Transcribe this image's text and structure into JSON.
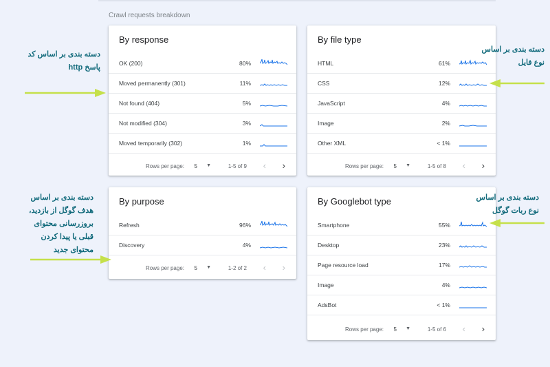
{
  "section_title": "Crawl requests breakdown",
  "cards": {
    "response": {
      "title": "By response",
      "rows": [
        {
          "label": "OK (200)",
          "pct": "80%"
        },
        {
          "label": "Moved permanently (301)",
          "pct": "11%"
        },
        {
          "label": "Not found (404)",
          "pct": "5%"
        },
        {
          "label": "Not modified (304)",
          "pct": "3%"
        },
        {
          "label": "Moved temporarily (302)",
          "pct": "1%"
        }
      ],
      "pager": {
        "rows_per_page": "Rows per page:",
        "size": "5",
        "range": "1-5 of 9"
      }
    },
    "filetype": {
      "title": "By file type",
      "rows": [
        {
          "label": "HTML",
          "pct": "61%"
        },
        {
          "label": "CSS",
          "pct": "12%"
        },
        {
          "label": "JavaScript",
          "pct": "4%"
        },
        {
          "label": "Image",
          "pct": "2%"
        },
        {
          "label": "Other XML",
          "pct": "< 1%"
        }
      ],
      "pager": {
        "rows_per_page": "Rows per page:",
        "size": "5",
        "range": "1-5 of 8"
      }
    },
    "purpose": {
      "title": "By purpose",
      "rows": [
        {
          "label": "Refresh",
          "pct": "96%"
        },
        {
          "label": "Discovery",
          "pct": "4%"
        }
      ],
      "pager": {
        "rows_per_page": "Rows per page:",
        "size": "5",
        "range": "1-2 of 2"
      }
    },
    "googlebot": {
      "title": "By Googlebot type",
      "rows": [
        {
          "label": "Smartphone",
          "pct": "55%"
        },
        {
          "label": "Desktop",
          "pct": "23%"
        },
        {
          "label": "Page resource load",
          "pct": "17%"
        },
        {
          "label": "Image",
          "pct": "4%"
        },
        {
          "label": "AdsBot",
          "pct": "< 1%"
        }
      ],
      "pager": {
        "rows_per_page": "Rows per page:",
        "size": "5",
        "range": "1-5 of 6"
      }
    }
  },
  "notes": {
    "response": [
      "دسته بندی بر اساس کد",
      "پاسخ http"
    ],
    "filetype": [
      "دسته بندی بر اساس",
      "نوع فایل"
    ],
    "purpose": [
      "دسته بندی بر اساس",
      "هدف گوگل از بازدید،",
      "بروزرسانی محتوای",
      "قبلی یا پیدا کردن",
      "محتوای جدید"
    ],
    "googlebot": [
      "دسته بندی بر اساس",
      "نوع ربات گوگل"
    ]
  },
  "colors": {
    "sparkline": "#1a73e8",
    "note_text": "#116a7b",
    "arrow": "#c5e04a"
  },
  "icons": {
    "dropdown": "arrow-drop-down-icon",
    "prev": "chevron-left-icon",
    "next": "chevron-right-icon"
  }
}
